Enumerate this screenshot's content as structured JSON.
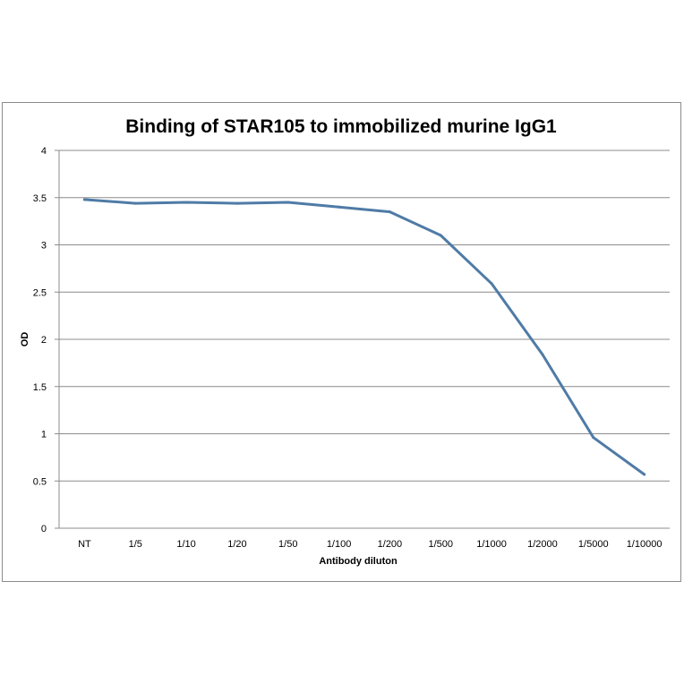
{
  "chart_data": {
    "type": "line",
    "title": "Binding of STAR105 to immobilized murine IgG1",
    "xlabel": "Antibody diluton",
    "ylabel": "OD",
    "categories": [
      "NT",
      "1/5",
      "1/10",
      "1/20",
      "1/50",
      "1/100",
      "1/200",
      "1/500",
      "1/1000",
      "1/2000",
      "1/5000",
      "1/10000"
    ],
    "series": [
      {
        "values": [
          3.48,
          3.44,
          3.45,
          3.44,
          3.45,
          3.4,
          3.35,
          3.1,
          2.59,
          1.84,
          0.96,
          0.57
        ],
        "color": "#4f7ba6"
      }
    ],
    "ylim": [
      0,
      4
    ],
    "yticks": [
      0,
      0.5,
      1,
      1.5,
      2,
      2.5,
      3,
      3.5,
      4
    ],
    "ytick_labels": [
      "0",
      "0.5",
      "1",
      "1.5",
      "2",
      "2.5",
      "3",
      "3.5",
      "4"
    ],
    "grid": true,
    "legend": "none",
    "colors": {
      "gridline": "#8c8c8c",
      "axis": "#8c8c8c",
      "frame": "#8c8c8c"
    }
  }
}
